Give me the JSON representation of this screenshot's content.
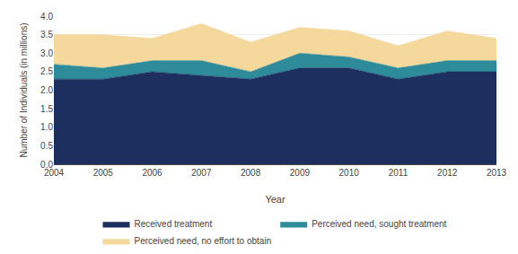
{
  "chart_data": {
    "type": "area",
    "stacked": true,
    "xlabel": "Year",
    "ylabel": "Number of Individuals (in millions)",
    "x": [
      2004,
      2005,
      2006,
      2007,
      2008,
      2009,
      2010,
      2011,
      2012,
      2013
    ],
    "series": [
      {
        "name": "Received treatment",
        "color": "#1c2f5e",
        "values": [
          2.3,
          2.3,
          2.5,
          2.4,
          2.3,
          2.6,
          2.6,
          2.3,
          2.5,
          2.5
        ]
      },
      {
        "name": "Perceived need, sought treatment",
        "color": "#2e8b9a",
        "values": [
          0.4,
          0.3,
          0.3,
          0.4,
          0.2,
          0.4,
          0.3,
          0.3,
          0.3,
          0.3
        ]
      },
      {
        "name": "Perceived need, no effort to obtain",
        "color": "#f5d89c",
        "values": [
          0.8,
          0.9,
          0.6,
          1.0,
          0.8,
          0.7,
          0.7,
          0.6,
          0.8,
          0.6
        ]
      }
    ],
    "xlim": [
      2004,
      2013
    ],
    "xticks": [
      2004,
      2005,
      2006,
      2007,
      2008,
      2009,
      2010,
      2011,
      2012,
      2013
    ],
    "ylim": [
      0.0,
      4.0
    ],
    "yticks": [
      {
        "value": 0.0,
        "label": "0.0"
      },
      0.5,
      {
        "value": 1.0,
        "label": "1.0"
      },
      1.5,
      {
        "value": 2.0,
        "label": "2.0"
      },
      2.5,
      {
        "value": 3.0,
        "label": "3.0"
      },
      3.5,
      {
        "value": 4.0,
        "label": "4.0"
      }
    ],
    "grid": "y",
    "legend": "bottom"
  }
}
